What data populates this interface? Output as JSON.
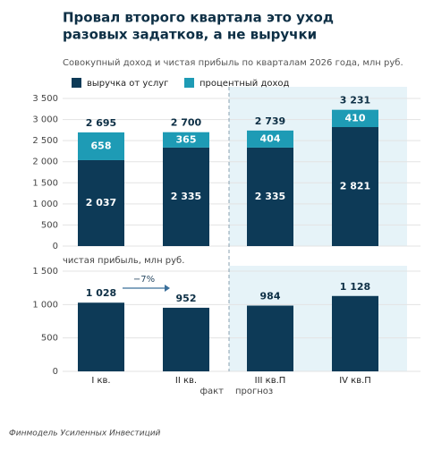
{
  "title": [
    "Провал второго квартала это уход",
    "разовых задатков, а не выручки"
  ],
  "subtitle": "Совокупный доход и чистая прибыль по кварталам 2026 года, млн руб.",
  "footer": "Финмодель Усиленных Инвестиций",
  "fact_label": "факт",
  "forecast_label": "прогноз",
  "chart_data": [
    {
      "type": "stacked_bar",
      "series": [
        {
          "name": "выручка от услуг",
          "color": "#0d3a57",
          "values": [
            2037,
            2335,
            2335,
            2821
          ],
          "value_labels": [
            "2 037",
            "2 335",
            "2 335",
            "2 821"
          ]
        },
        {
          "name": "процентный доход",
          "color": "#1e9bb5",
          "values": [
            658,
            365,
            404,
            410
          ],
          "value_labels": [
            "658",
            "365",
            "404",
            "410"
          ]
        }
      ],
      "totals": {
        "values": [
          2695,
          2700,
          2739,
          3231
        ],
        "value_labels": [
          "2 695",
          "2 700",
          "2 739",
          "3 231"
        ]
      },
      "ylim": [
        0,
        3500
      ],
      "yticks": [
        0,
        500,
        {
          "value": 1000,
          "label": "1 000"
        },
        {
          "value": 1500,
          "label": "1 500"
        },
        {
          "value": 2000,
          "label": "2 000"
        },
        {
          "value": 2500,
          "label": "2 500"
        },
        {
          "value": 3000,
          "label": "3 000"
        },
        {
          "value": 3500,
          "label": "3 500"
        }
      ],
      "grid": true
    },
    {
      "type": "bar",
      "y_label": "чистая прибыль, млн руб.",
      "categories": [
        "I кв.",
        "II кв.",
        "III кв.П",
        "IV кв.П"
      ],
      "values": [
        1028,
        952,
        984,
        1128
      ],
      "value_labels": [
        "1 028",
        "952",
        "984",
        "1 128"
      ],
      "color": "#0d3a57",
      "annotation": "−7%",
      "ylim": [
        0,
        1500
      ],
      "yticks": [
        0,
        500,
        {
          "value": 1000,
          "label": "1 000"
        },
        {
          "value": 1500,
          "label": "1 500"
        }
      ],
      "grid": true
    }
  ]
}
